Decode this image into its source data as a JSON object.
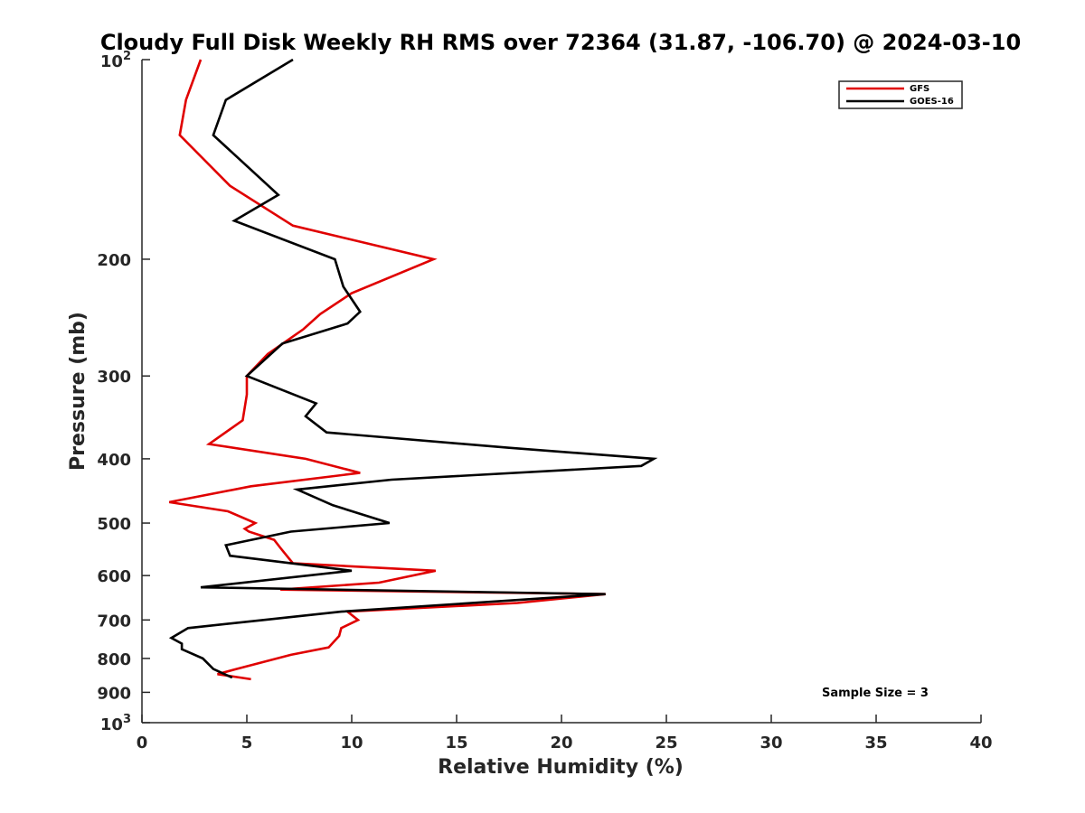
{
  "chart_data": {
    "type": "line",
    "title": "Cloudy Full Disk Weekly RH RMS over 72364 (31.87, -106.70) @ 2024-03-10",
    "xlabel": "Relative Humidity (%)",
    "ylabel": "Pressure (mb)",
    "xlim": [
      0,
      40
    ],
    "ylim": [
      100,
      1000
    ],
    "yscale": "log",
    "y_reversed": true,
    "grid": false,
    "legend_position": "top-right",
    "x_ticks": [
      "0",
      "5",
      "10",
      "15",
      "20",
      "25",
      "30",
      "35",
      "40"
    ],
    "y_ticks": [
      {
        "value": 100,
        "base": "10",
        "exp": "2"
      },
      {
        "value": 200,
        "label": "200"
      },
      {
        "value": 300,
        "label": "300"
      },
      {
        "value": 400,
        "label": "400"
      },
      {
        "value": 500,
        "label": "500"
      },
      {
        "value": 600,
        "label": "600"
      },
      {
        "value": 700,
        "label": "700"
      },
      {
        "value": 800,
        "label": "800"
      },
      {
        "value": 900,
        "label": "900"
      },
      {
        "value": 1000,
        "base": "10",
        "exp": "3"
      }
    ],
    "annotation": "Sample Size = 3",
    "series": [
      {
        "name": "GFS",
        "color": "#e00000",
        "points": [
          [
            2.8,
            100
          ],
          [
            2.1,
            115
          ],
          [
            1.8,
            130
          ],
          [
            4.2,
            155
          ],
          [
            7.2,
            178
          ],
          [
            13.9,
            200
          ],
          [
            10.0,
            225
          ],
          [
            8.5,
            242
          ],
          [
            7.7,
            255
          ],
          [
            6.0,
            278
          ],
          [
            5.0,
            300
          ],
          [
            5.0,
            320
          ],
          [
            4.8,
            350
          ],
          [
            3.2,
            380
          ],
          [
            7.8,
            400
          ],
          [
            10.4,
            420
          ],
          [
            5.2,
            440
          ],
          [
            1.3,
            465
          ],
          [
            4.1,
            480
          ],
          [
            5.4,
            500
          ],
          [
            4.9,
            510
          ],
          [
            5.1,
            515
          ],
          [
            6.3,
            530
          ],
          [
            6.6,
            545
          ],
          [
            6.8,
            555
          ],
          [
            7.2,
            575
          ],
          [
            14.0,
            590
          ],
          [
            11.3,
            615
          ],
          [
            6.6,
            630
          ],
          [
            22.1,
            640
          ],
          [
            17.9,
            660
          ],
          [
            9.8,
            680
          ],
          [
            10.3,
            700
          ],
          [
            9.5,
            720
          ],
          [
            9.4,
            740
          ],
          [
            8.9,
            770
          ],
          [
            7.1,
            790
          ],
          [
            4.5,
            830
          ],
          [
            3.6,
            845
          ],
          [
            5.2,
            860
          ]
        ]
      },
      {
        "name": "GOES-16",
        "color": "#000000",
        "points": [
          [
            7.2,
            100
          ],
          [
            4.0,
            115
          ],
          [
            3.4,
            130
          ],
          [
            6.5,
            160
          ],
          [
            4.4,
            175
          ],
          [
            9.2,
            200
          ],
          [
            9.6,
            220
          ],
          [
            10.4,
            240
          ],
          [
            9.8,
            250
          ],
          [
            6.7,
            268
          ],
          [
            5.0,
            300
          ],
          [
            8.3,
            330
          ],
          [
            7.8,
            345
          ],
          [
            8.8,
            365
          ],
          [
            17.5,
            385
          ],
          [
            24.4,
            400
          ],
          [
            23.8,
            410
          ],
          [
            11.9,
            430
          ],
          [
            7.4,
            445
          ],
          [
            9.1,
            470
          ],
          [
            11.8,
            500
          ],
          [
            7.1,
            515
          ],
          [
            4.0,
            540
          ],
          [
            4.2,
            560
          ],
          [
            10.0,
            590
          ],
          [
            2.8,
            625
          ],
          [
            22.1,
            640
          ],
          [
            9.5,
            680
          ],
          [
            5.8,
            700
          ],
          [
            2.2,
            720
          ],
          [
            1.4,
            745
          ],
          [
            1.9,
            760
          ],
          [
            1.9,
            775
          ],
          [
            2.9,
            800
          ],
          [
            3.4,
            830
          ],
          [
            4.3,
            855
          ]
        ]
      }
    ]
  }
}
